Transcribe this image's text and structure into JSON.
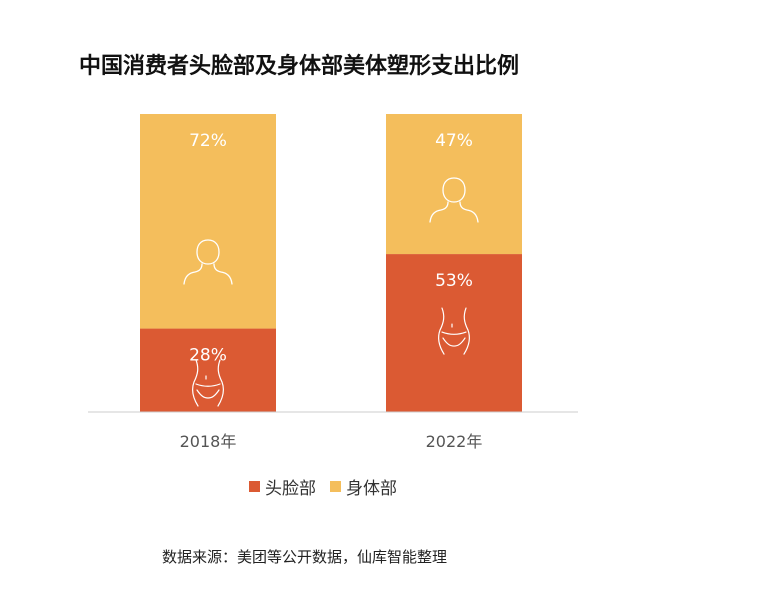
{
  "title": "中国消费者头脸部及身体部美体塑形支出比例",
  "source": "数据来源：美团等公开数据，仙库智能整理",
  "colors": {
    "face": "#DB5A33",
    "body": "#F4BE5C",
    "axis": "#cccccc",
    "label_text": "#ffffff"
  },
  "icons": {
    "face": "body-figure-icon",
    "body": "person-silhouette-icon"
  },
  "chart_data": {
    "type": "bar",
    "stacked": true,
    "categories": [
      "2018年",
      "2022年"
    ],
    "series": [
      {
        "name": "头脸部",
        "values": [
          28,
          53
        ],
        "labels": [
          "28%",
          "53%"
        ]
      },
      {
        "name": "身体部",
        "values": [
          72,
          47
        ],
        "labels": [
          "72%",
          "47%"
        ]
      }
    ],
    "ylim": [
      0,
      100
    ],
    "legend_position": "bottom",
    "grid": false
  }
}
